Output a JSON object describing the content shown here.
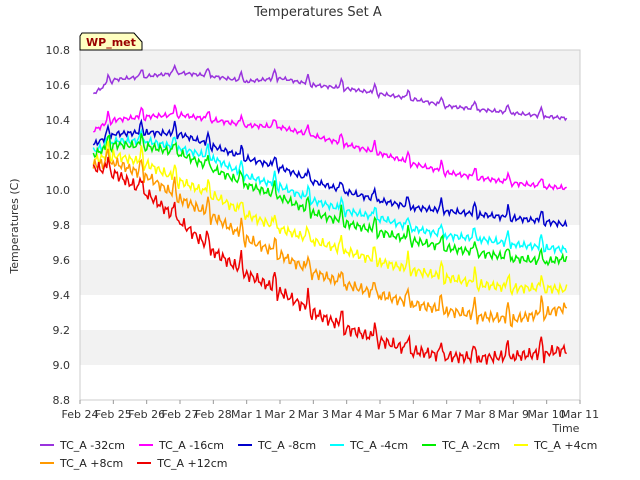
{
  "chart_data": {
    "type": "line",
    "title": "Temperatures Set A",
    "ylabel": "Temperatures (C)",
    "xlabel": "Time",
    "badge": "WP_met",
    "ylim": [
      8.8,
      10.8
    ],
    "yticks": [
      8.8,
      9.0,
      9.2,
      9.4,
      9.6,
      9.8,
      10.0,
      10.2,
      10.4,
      10.6,
      10.8
    ],
    "ytick_labels": [
      "8.8",
      "9.0",
      "9.2",
      "9.4",
      "9.6",
      "9.8",
      "10.0",
      "10.2",
      "10.4",
      "10.6",
      "10.8"
    ],
    "x_ticks": [
      "Feb 24",
      "Feb 25",
      "Feb 26",
      "Feb 27",
      "Feb 28",
      "Mar 1",
      "Mar 2",
      "Mar 3",
      "Mar 4",
      "Mar 5",
      "Mar 6",
      "Mar 7",
      "Mar 8",
      "Mar 9",
      "Mar 10",
      "Mar 11"
    ],
    "x_range_days": [
      0,
      15
    ],
    "grid": "horizontal bands",
    "legend_position": "bottom",
    "series": [
      {
        "name": "TC_A -32cm",
        "color": "#9933dd",
        "x": [
          0.4,
          1.0,
          2.0,
          3.0,
          4.0,
          5.0,
          6.0,
          7.0,
          8.0,
          9.0,
          10.0,
          11.0,
          12.0,
          13.0,
          14.0,
          14.6
        ],
        "values": [
          10.55,
          10.63,
          10.65,
          10.67,
          10.65,
          10.62,
          10.64,
          10.6,
          10.58,
          10.55,
          10.52,
          10.48,
          10.46,
          10.44,
          10.42,
          10.41
        ]
      },
      {
        "name": "TC_A -16cm",
        "color": "#ff00ff",
        "x": [
          0.4,
          1.0,
          2.0,
          3.0,
          4.0,
          5.0,
          6.0,
          7.0,
          8.0,
          9.0,
          10.0,
          11.0,
          12.0,
          13.0,
          14.0,
          14.6
        ],
        "values": [
          10.34,
          10.4,
          10.42,
          10.43,
          10.4,
          10.37,
          10.36,
          10.31,
          10.26,
          10.21,
          10.15,
          10.1,
          10.07,
          10.04,
          10.02,
          10.01
        ]
      },
      {
        "name": "TC_A -8cm",
        "color": "#0000cc",
        "x": [
          0.4,
          1.0,
          2.0,
          3.0,
          4.0,
          5.0,
          6.0,
          7.0,
          8.0,
          9.0,
          10.0,
          11.0,
          12.0,
          13.0,
          14.0,
          14.6
        ],
        "values": [
          10.26,
          10.32,
          10.33,
          10.32,
          10.25,
          10.18,
          10.13,
          10.05,
          9.99,
          9.94,
          9.9,
          9.88,
          9.86,
          9.84,
          9.82,
          9.8
        ]
      },
      {
        "name": "TC_A -4cm",
        "color": "#00ffff",
        "x": [
          0.4,
          1.0,
          2.0,
          3.0,
          4.0,
          5.0,
          6.0,
          7.0,
          8.0,
          9.0,
          10.0,
          11.0,
          12.0,
          13.0,
          14.0,
          14.6
        ],
        "values": [
          10.22,
          10.28,
          10.28,
          10.24,
          10.18,
          10.08,
          10.02,
          9.94,
          9.88,
          9.84,
          9.78,
          9.74,
          9.72,
          9.69,
          9.67,
          9.66
        ]
      },
      {
        "name": "TC_A -2cm",
        "color": "#00ee00",
        "x": [
          0.4,
          1.0,
          2.0,
          3.0,
          4.0,
          5.0,
          6.0,
          7.0,
          8.0,
          9.0,
          10.0,
          11.0,
          12.0,
          13.0,
          14.0,
          14.6
        ],
        "values": [
          10.2,
          10.26,
          10.25,
          10.21,
          10.12,
          10.03,
          9.96,
          9.87,
          9.81,
          9.76,
          9.71,
          9.67,
          9.64,
          9.61,
          9.59,
          9.61
        ]
      },
      {
        "name": "TC_A +4cm",
        "color": "#ffff00",
        "x": [
          0.4,
          1.0,
          2.0,
          3.0,
          4.0,
          5.0,
          6.0,
          7.0,
          8.0,
          9.0,
          10.0,
          11.0,
          12.0,
          13.0,
          14.0,
          14.6
        ],
        "values": [
          10.17,
          10.2,
          10.15,
          10.05,
          9.97,
          9.86,
          9.78,
          9.71,
          9.65,
          9.59,
          9.54,
          9.5,
          9.46,
          9.44,
          9.44,
          9.43
        ]
      },
      {
        "name": "TC_A +8cm",
        "color": "#ff9900",
        "x": [
          0.4,
          1.0,
          2.0,
          3.0,
          4.0,
          5.0,
          6.0,
          7.0,
          8.0,
          9.0,
          10.0,
          11.0,
          12.0,
          13.0,
          14.0,
          14.6
        ],
        "values": [
          10.14,
          10.16,
          10.08,
          9.95,
          9.85,
          9.72,
          9.63,
          9.53,
          9.46,
          9.4,
          9.35,
          9.31,
          9.28,
          9.26,
          9.3,
          9.33
        ]
      },
      {
        "name": "TC_A +12cm",
        "color": "#ee0000",
        "x": [
          0.4,
          1.0,
          2.0,
          3.0,
          4.0,
          5.0,
          6.0,
          7.0,
          8.0,
          9.0,
          10.0,
          11.0,
          12.0,
          13.0,
          14.0,
          14.6
        ],
        "values": [
          10.13,
          10.1,
          9.98,
          9.82,
          9.65,
          9.52,
          9.42,
          9.3,
          9.21,
          9.14,
          9.08,
          9.05,
          9.04,
          9.05,
          9.07,
          9.09
        ]
      }
    ]
  }
}
